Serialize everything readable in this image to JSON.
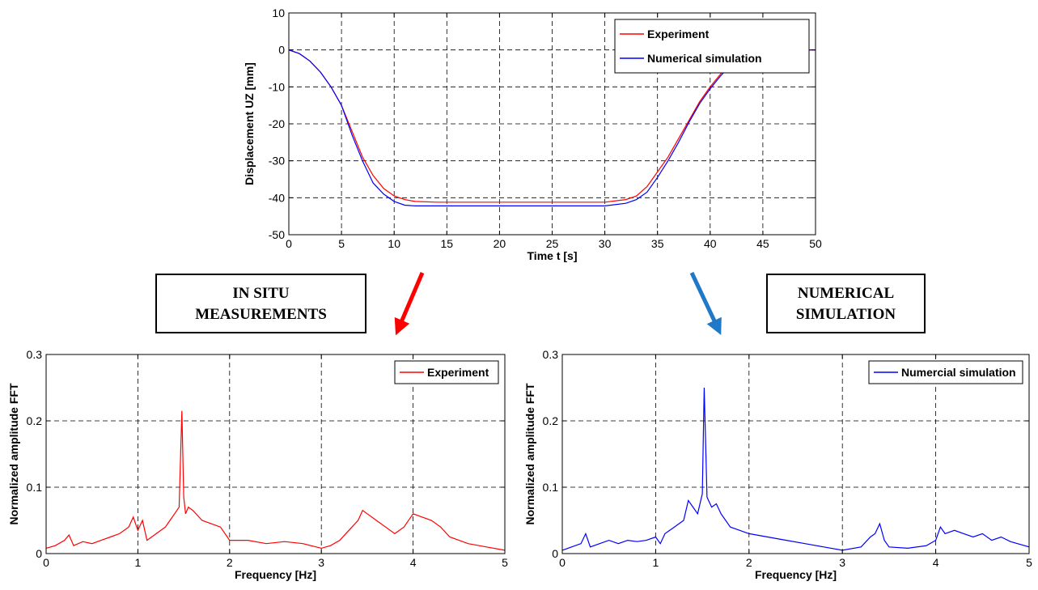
{
  "annotations": {
    "in_situ_line1": "IN SITU",
    "in_situ_line2": "MEASUREMENTS",
    "numerical_line1": "NUMERICAL",
    "numerical_line2": "SIMULATION"
  },
  "colors": {
    "experiment": "#ff0000",
    "simulation": "#0000ff",
    "left_arrow": "#ff0000",
    "right_arrow": "#1f78c8"
  },
  "chart_data": [
    {
      "id": "top",
      "type": "line",
      "title": "",
      "xlabel": "Time t [s]",
      "ylabel": "Displacement UZ [mm]",
      "xlim": [
        0,
        50
      ],
      "ylim": [
        -50,
        10
      ],
      "xticks": [
        0,
        5,
        10,
        15,
        20,
        25,
        30,
        35,
        40,
        45,
        50
      ],
      "yticks": [
        10,
        0,
        -10,
        -20,
        -30,
        -40,
        -50
      ],
      "grid": true,
      "legend": "top-right",
      "series": [
        {
          "name": "Experiment",
          "color": "#ff0000",
          "x": [
            0,
            1,
            2,
            3,
            4,
            5,
            6,
            7,
            8,
            9,
            10,
            11,
            12,
            14,
            16,
            18,
            20,
            22,
            24,
            26,
            28,
            30,
            32,
            33,
            34,
            35,
            36,
            37,
            38,
            39,
            40,
            41,
            42,
            43,
            44,
            45,
            46,
            48,
            50
          ],
          "y": [
            0,
            -1,
            -3,
            -6,
            -10,
            -15,
            -22,
            -29,
            -34,
            -37.5,
            -39.5,
            -40.5,
            -41,
            -41.2,
            -41.2,
            -41.2,
            -41.2,
            -41.2,
            -41.2,
            -41.2,
            -41.2,
            -41.2,
            -40.5,
            -39.5,
            -37,
            -33,
            -29,
            -24,
            -19,
            -14,
            -10,
            -6.5,
            -3.5,
            -1.5,
            -0.5,
            0,
            0,
            0,
            0
          ]
        },
        {
          "name": "Numerical simulation",
          "color": "#0000ff",
          "x": [
            0,
            1,
            2,
            3,
            4,
            5,
            6,
            7,
            8,
            9,
            10,
            11,
            12,
            14,
            16,
            18,
            20,
            22,
            24,
            26,
            28,
            30,
            32,
            33,
            34,
            35,
            36,
            37,
            38,
            39,
            40,
            41,
            42,
            43,
            44,
            45,
            46,
            48,
            50
          ],
          "y": [
            0,
            -1,
            -3,
            -6,
            -10,
            -15,
            -23,
            -30,
            -36,
            -39,
            -41,
            -42,
            -42.2,
            -42.2,
            -42.2,
            -42.2,
            -42.2,
            -42.2,
            -42.2,
            -42.2,
            -42.2,
            -42.2,
            -41.5,
            -40.5,
            -38.5,
            -34.5,
            -30,
            -25,
            -19.5,
            -14.5,
            -10.5,
            -7,
            -4,
            -2,
            -1,
            -0.3,
            0,
            0,
            0
          ]
        }
      ]
    },
    {
      "id": "bl",
      "type": "line",
      "title": "",
      "xlabel": "Frequency [Hz]",
      "ylabel": "Normalized amplitude FFT",
      "xlim": [
        0,
        5
      ],
      "ylim": [
        0,
        0.3
      ],
      "xticks": [
        0,
        1,
        2,
        3,
        4,
        5
      ],
      "yticks": [
        0.3,
        0.2,
        0.1,
        0
      ],
      "grid": true,
      "legend": "top-right",
      "series": [
        {
          "name": "Experiment",
          "color": "#ff0000",
          "x": [
            0,
            0.1,
            0.2,
            0.25,
            0.3,
            0.4,
            0.5,
            0.6,
            0.7,
            0.8,
            0.9,
            0.95,
            1.0,
            1.05,
            1.1,
            1.2,
            1.3,
            1.35,
            1.4,
            1.45,
            1.48,
            1.5,
            1.52,
            1.55,
            1.6,
            1.7,
            1.8,
            1.9,
            2.0,
            2.2,
            2.4,
            2.6,
            2.8,
            3.0,
            3.1,
            3.2,
            3.3,
            3.4,
            3.45,
            3.5,
            3.6,
            3.7,
            3.8,
            3.9,
            4.0,
            4.1,
            4.2,
            4.3,
            4.4,
            4.5,
            4.6,
            4.8,
            5.0
          ],
          "y": [
            0.008,
            0.012,
            0.02,
            0.028,
            0.012,
            0.018,
            0.015,
            0.02,
            0.025,
            0.03,
            0.04,
            0.055,
            0.035,
            0.05,
            0.02,
            0.03,
            0.04,
            0.05,
            0.06,
            0.07,
            0.215,
            0.085,
            0.06,
            0.07,
            0.065,
            0.05,
            0.045,
            0.04,
            0.02,
            0.02,
            0.015,
            0.018,
            0.015,
            0.008,
            0.012,
            0.02,
            0.035,
            0.05,
            0.065,
            0.06,
            0.05,
            0.04,
            0.03,
            0.04,
            0.06,
            0.055,
            0.05,
            0.04,
            0.025,
            0.02,
            0.015,
            0.01,
            0.005
          ]
        }
      ]
    },
    {
      "id": "br",
      "type": "line",
      "title": "",
      "xlabel": "Frequency [Hz]",
      "ylabel": "Normalized amplitude FFT",
      "xlim": [
        0,
        5
      ],
      "ylim": [
        0,
        0.3
      ],
      "xticks": [
        0,
        1,
        2,
        3,
        4,
        5
      ],
      "yticks": [
        0.3,
        0.2,
        0.1,
        0
      ],
      "grid": true,
      "legend": "top-right",
      "series": [
        {
          "name": "Numercial simulation",
          "color": "#0000ff",
          "x": [
            0,
            0.1,
            0.2,
            0.25,
            0.3,
            0.4,
            0.5,
            0.6,
            0.7,
            0.8,
            0.9,
            1.0,
            1.05,
            1.1,
            1.2,
            1.3,
            1.35,
            1.4,
            1.45,
            1.5,
            1.52,
            1.55,
            1.6,
            1.65,
            1.7,
            1.8,
            1.9,
            2.0,
            2.2,
            2.4,
            2.6,
            2.8,
            3.0,
            3.2,
            3.3,
            3.35,
            3.4,
            3.45,
            3.5,
            3.7,
            3.9,
            4.0,
            4.05,
            4.1,
            4.2,
            4.3,
            4.4,
            4.5,
            4.6,
            4.7,
            4.8,
            5.0
          ],
          "y": [
            0.005,
            0.01,
            0.015,
            0.03,
            0.01,
            0.015,
            0.02,
            0.015,
            0.02,
            0.018,
            0.02,
            0.025,
            0.015,
            0.03,
            0.04,
            0.05,
            0.08,
            0.07,
            0.06,
            0.09,
            0.25,
            0.085,
            0.07,
            0.075,
            0.06,
            0.04,
            0.035,
            0.03,
            0.025,
            0.02,
            0.015,
            0.01,
            0.005,
            0.01,
            0.025,
            0.03,
            0.045,
            0.02,
            0.01,
            0.008,
            0.012,
            0.02,
            0.04,
            0.03,
            0.035,
            0.03,
            0.025,
            0.03,
            0.02,
            0.025,
            0.018,
            0.01
          ]
        }
      ]
    }
  ]
}
